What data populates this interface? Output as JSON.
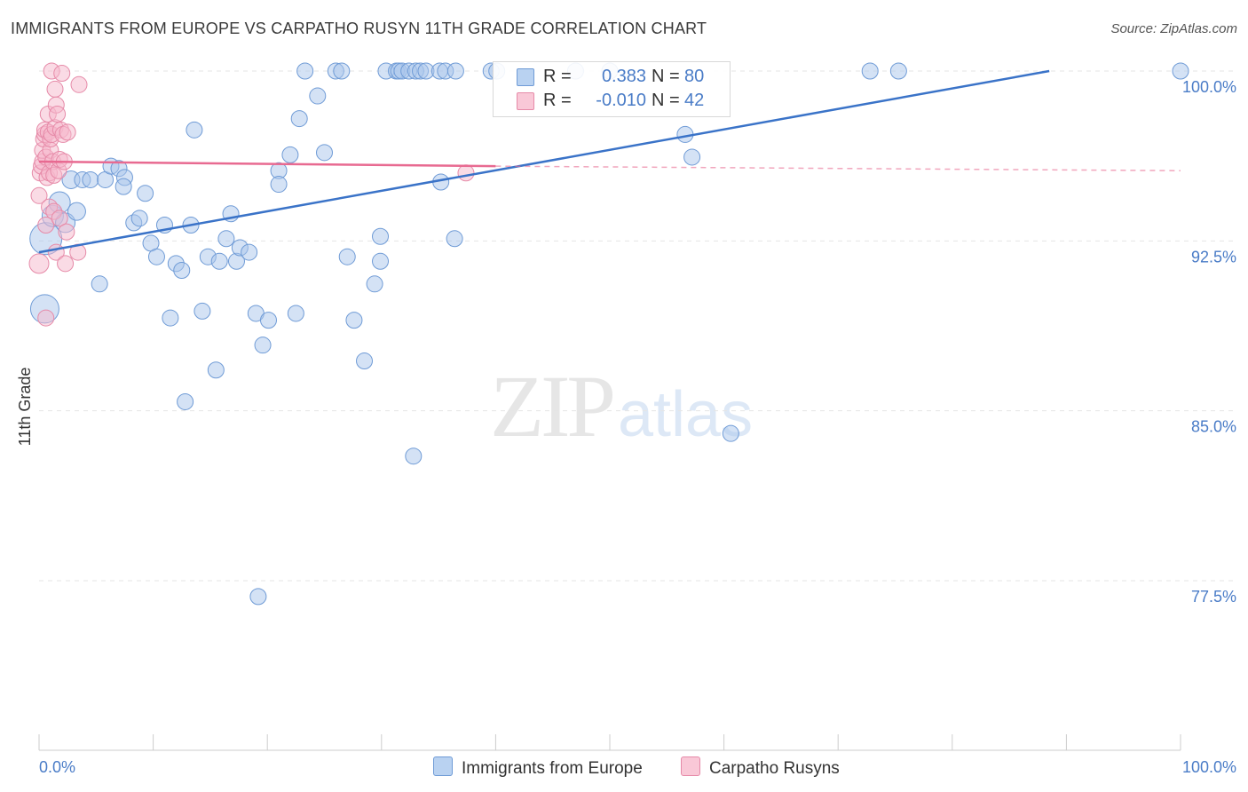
{
  "title": "IMMIGRANTS FROM EUROPE VS CARPATHO RUSYN 11TH GRADE CORRELATION CHART",
  "source": "Source: ZipAtlas.com",
  "watermark": {
    "zip": "ZIP",
    "atlas": "atlas"
  },
  "legend": {
    "series1": {
      "r_label": "R =",
      "r_value": "0.383",
      "n_label": "N =",
      "n_value": "80"
    },
    "series2": {
      "r_label": "R =",
      "r_value": "-0.010",
      "n_label": "N =",
      "n_value": "42"
    }
  },
  "colors": {
    "blue_fill": "#a9c6ec",
    "blue_stroke": "#6f9bd6",
    "blue_line": "#3a73c8",
    "pink_fill": "#f5b7cb",
    "pink_stroke": "#e68aa8",
    "pink_line": "#e86a91",
    "grid": "#e5e5e5",
    "axis_text": "#4a7cc7"
  },
  "chart_data": {
    "type": "scatter",
    "title": "IMMIGRANTS FROM EUROPE VS CARPATHO RUSYN 11TH GRADE CORRELATION CHART",
    "xlabel": "",
    "ylabel": "11th Grade",
    "xlim": [
      0,
      100
    ],
    "ylim": [
      70,
      101.2
    ],
    "x_tick_labels": [
      "0.0%",
      "100.0%"
    ],
    "y_ticks": [
      77.5,
      85.0,
      92.5,
      100.0
    ],
    "y_tick_labels": [
      "77.5%",
      "85.0%",
      "92.5%",
      "100.0%"
    ],
    "series": [
      {
        "name": "Immigrants from Europe",
        "color": "blue",
        "trend": {
          "x": [
            0,
            88.5
          ],
          "y": [
            92.0,
            100.0
          ],
          "dashed_to": null
        },
        "points": [
          [
            0.5,
            89.5,
            16
          ],
          [
            0.6,
            92.6,
            18
          ],
          [
            1.2,
            93.6,
            12
          ],
          [
            1.8,
            94.2,
            12
          ],
          [
            2.3,
            93.3,
            11
          ],
          [
            2.8,
            95.2,
            10
          ],
          [
            3.3,
            93.8,
            10
          ],
          [
            3.8,
            95.2,
            9
          ],
          [
            4.5,
            95.2,
            9
          ],
          [
            5.3,
            90.6,
            9
          ],
          [
            5.8,
            95.2,
            9
          ],
          [
            6.3,
            95.8,
            9
          ],
          [
            7.0,
            95.7,
            9
          ],
          [
            7.5,
            95.3,
            9
          ],
          [
            7.4,
            94.9,
            9
          ],
          [
            8.3,
            93.3,
            9
          ],
          [
            8.8,
            93.5,
            9
          ],
          [
            9.3,
            94.6,
            9
          ],
          [
            9.8,
            92.4,
            9
          ],
          [
            10.3,
            91.8,
            9
          ],
          [
            11.0,
            93.2,
            9
          ],
          [
            11.5,
            89.1,
            9
          ],
          [
            12.0,
            91.5,
            9
          ],
          [
            12.5,
            91.2,
            9
          ],
          [
            12.8,
            85.4,
            9
          ],
          [
            13.3,
            93.2,
            9
          ],
          [
            13.6,
            97.4,
            9
          ],
          [
            14.3,
            89.4,
            9
          ],
          [
            14.8,
            91.8,
            9
          ],
          [
            15.5,
            86.8,
            9
          ],
          [
            15.8,
            91.6,
            9
          ],
          [
            16.4,
            92.6,
            9
          ],
          [
            16.8,
            93.7,
            9
          ],
          [
            17.3,
            91.6,
            9
          ],
          [
            17.6,
            92.2,
            9
          ],
          [
            18.4,
            92.0,
            9
          ],
          [
            19.0,
            89.3,
            9
          ],
          [
            19.2,
            76.8,
            9
          ],
          [
            19.6,
            87.9,
            9
          ],
          [
            20.1,
            89.0,
            9
          ],
          [
            21.0,
            95.6,
            9
          ],
          [
            21.0,
            95.0,
            9
          ],
          [
            22.0,
            96.3,
            9
          ],
          [
            22.5,
            89.3,
            9
          ],
          [
            22.8,
            97.9,
            9
          ],
          [
            23.3,
            100.0,
            9
          ],
          [
            24.4,
            98.9,
            9
          ],
          [
            25.0,
            96.4,
            9
          ],
          [
            26.0,
            100.0,
            9
          ],
          [
            26.5,
            100.0,
            9
          ],
          [
            27.0,
            91.8,
            9
          ],
          [
            27.6,
            89.0,
            9
          ],
          [
            28.5,
            87.2,
            9
          ],
          [
            29.4,
            90.6,
            9
          ],
          [
            29.9,
            91.6,
            9
          ],
          [
            29.9,
            92.7,
            9
          ],
          [
            30.4,
            100.0,
            9
          ],
          [
            31.3,
            100.0,
            9
          ],
          [
            31.5,
            100.0,
            9
          ],
          [
            31.8,
            100.0,
            9
          ],
          [
            32.4,
            100.0,
            9
          ],
          [
            32.8,
            83.0,
            9
          ],
          [
            33.0,
            100.0,
            9
          ],
          [
            33.4,
            100.0,
            9
          ],
          [
            33.9,
            100.0,
            9
          ],
          [
            35.1,
            100.0,
            9
          ],
          [
            35.6,
            100.0,
            9
          ],
          [
            36.5,
            100.0,
            9
          ],
          [
            39.6,
            100.0,
            9
          ],
          [
            40.1,
            100.0,
            9
          ],
          [
            35.2,
            95.1,
            9
          ],
          [
            36.4,
            92.6,
            9
          ],
          [
            47.0,
            100.0,
            9
          ],
          [
            50.0,
            100.0,
            9
          ],
          [
            56.6,
            97.2,
            9
          ],
          [
            57.2,
            96.2,
            9
          ],
          [
            60.6,
            84.0,
            9
          ],
          [
            72.8,
            100.0,
            9
          ],
          [
            75.3,
            100.0,
            9
          ],
          [
            100.0,
            100.0,
            9
          ]
        ]
      },
      {
        "name": "Carpatho Rusyns",
        "color": "pink",
        "trend": {
          "x": [
            0,
            40
          ],
          "y": [
            96.0,
            95.8
          ],
          "dashed_to": [
            100,
            95.6
          ]
        },
        "points": [
          [
            0.0,
            91.5,
            11
          ],
          [
            0.0,
            94.5,
            9
          ],
          [
            0.1,
            95.5,
            9
          ],
          [
            0.2,
            95.8,
            9
          ],
          [
            0.3,
            96.0,
            9
          ],
          [
            0.3,
            96.5,
            9
          ],
          [
            0.4,
            97.0,
            9
          ],
          [
            0.5,
            97.2,
            9
          ],
          [
            0.5,
            97.4,
            9
          ],
          [
            0.6,
            96.2,
            9
          ],
          [
            0.6,
            93.2,
            9
          ],
          [
            0.6,
            89.1,
            9
          ],
          [
            0.7,
            95.3,
            9
          ],
          [
            0.8,
            97.3,
            9
          ],
          [
            0.8,
            98.1,
            9
          ],
          [
            0.9,
            95.5,
            9
          ],
          [
            0.9,
            94.0,
            9
          ],
          [
            1.0,
            96.5,
            9
          ],
          [
            1.0,
            97.0,
            9
          ],
          [
            1.1,
            100.0,
            9
          ],
          [
            1.1,
            97.2,
            9
          ],
          [
            1.2,
            96.0,
            9
          ],
          [
            1.3,
            95.4,
            9
          ],
          [
            1.3,
            93.8,
            9
          ],
          [
            1.4,
            99.2,
            9
          ],
          [
            1.4,
            97.5,
            9
          ],
          [
            1.5,
            98.5,
            9
          ],
          [
            1.5,
            92.0,
            9
          ],
          [
            1.6,
            98.1,
            9
          ],
          [
            1.7,
            95.6,
            9
          ],
          [
            1.8,
            93.5,
            9
          ],
          [
            1.8,
            96.1,
            9
          ],
          [
            1.9,
            97.4,
            9
          ],
          [
            2.0,
            99.9,
            9
          ],
          [
            2.1,
            97.2,
            9
          ],
          [
            2.2,
            96.0,
            9
          ],
          [
            2.3,
            91.5,
            9
          ],
          [
            2.4,
            92.9,
            9
          ],
          [
            2.5,
            97.3,
            9
          ],
          [
            3.4,
            92.0,
            9
          ],
          [
            3.5,
            99.4,
            9
          ],
          [
            37.4,
            95.5,
            9
          ]
        ]
      }
    ]
  }
}
